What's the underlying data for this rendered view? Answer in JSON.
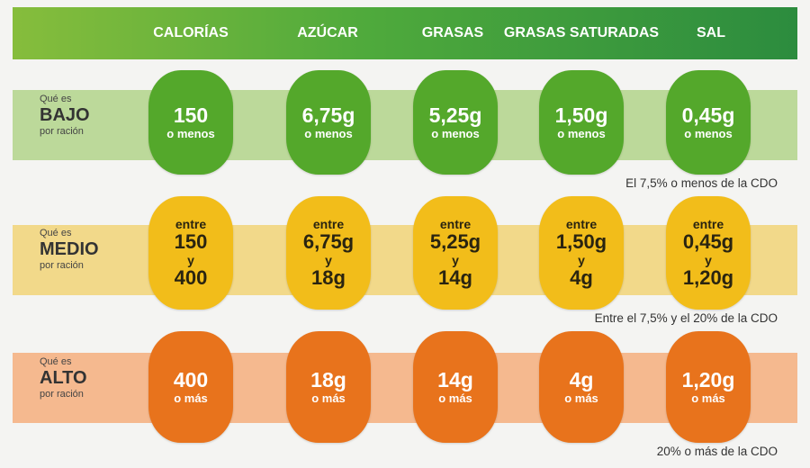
{
  "columns": [
    "CALORÍAS",
    "AZÚCAR",
    "GRASAS",
    "GRASAS SATURADAS",
    "SAL"
  ],
  "rows": {
    "bajo": {
      "label_top": "Qué es",
      "label_main": "BAJO",
      "label_bottom": "por ración",
      "values": [
        "150",
        "6,75g",
        "5,25g",
        "1,50g",
        "0,45g"
      ],
      "suffix": "o menos",
      "note": "El 7,5% o menos de la CDO",
      "color": "#54a82b"
    },
    "medio": {
      "label_top": "Qué es",
      "label_main": "MEDIO",
      "label_bottom": "por ración",
      "prefix": "entre",
      "connector": "y",
      "from": [
        "150",
        "6,75g",
        "5,25g",
        "1,50g",
        "0,45g"
      ],
      "to": [
        "400",
        "18g",
        "14g",
        "4g",
        "1,20g"
      ],
      "note": "Entre el 7,5% y el 20% de la CDO",
      "color": "#f2bd1a"
    },
    "alto": {
      "label_top": "Qué es",
      "label_main": "ALTO",
      "label_bottom": "por ración",
      "values": [
        "400",
        "18g",
        "14g",
        "4g",
        "1,20g"
      ],
      "suffix": "o más",
      "note": "20% o más de la CDO",
      "color": "#e8731c"
    }
  }
}
